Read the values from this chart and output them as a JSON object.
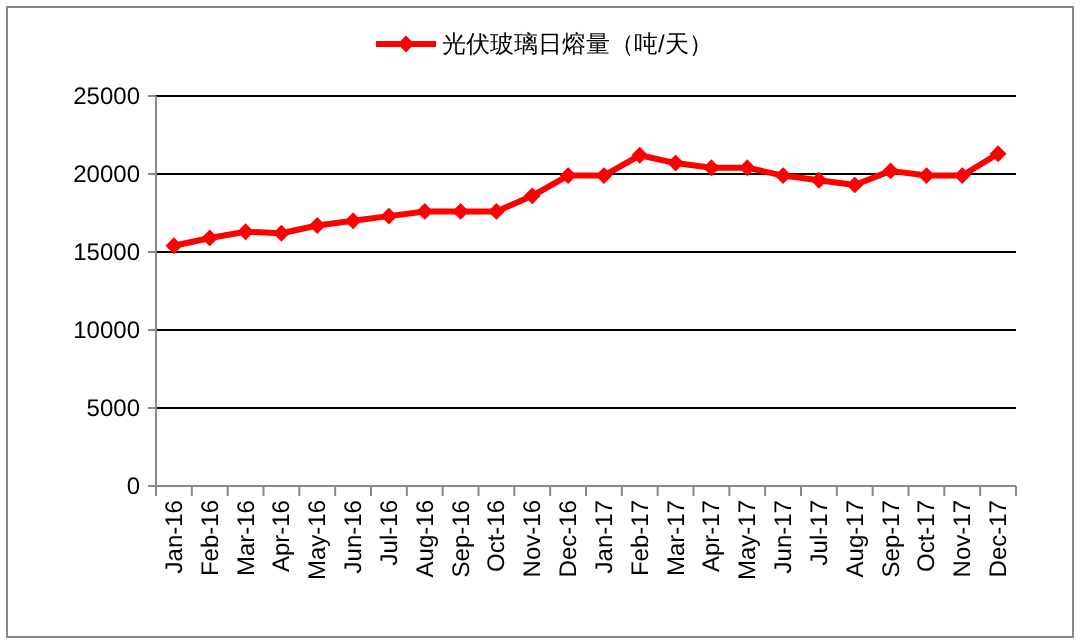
{
  "chart_data": {
    "type": "line",
    "categories": [
      "Jan-16",
      "Feb-16",
      "Mar-16",
      "Apr-16",
      "May-16",
      "Jun-16",
      "Jul-16",
      "Aug-16",
      "Sep-16",
      "Oct-16",
      "Nov-16",
      "Dec-16",
      "Jan-17",
      "Feb-17",
      "Mar-17",
      "Apr-17",
      "May-17",
      "Jun-17",
      "Jul-17",
      "Aug-17",
      "Sep-17",
      "Oct-17",
      "Nov-17",
      "Dec-17"
    ],
    "series": [
      {
        "name": "光伏玻璃日熔量（吨/天）",
        "color": "#ff0000",
        "values": [
          15400,
          15900,
          16300,
          16200,
          16700,
          17000,
          17300,
          17600,
          17600,
          17600,
          18600,
          19900,
          19900,
          21200,
          20700,
          20400,
          20400,
          19900,
          19600,
          19300,
          20200,
          19900,
          19900,
          21300
        ]
      }
    ],
    "ylim": [
      0,
      25000
    ],
    "yticks": [
      0,
      5000,
      10000,
      15000,
      20000,
      25000
    ],
    "grid": "y",
    "legend": "top",
    "marker": "diamond",
    "line_style": "solid"
  }
}
